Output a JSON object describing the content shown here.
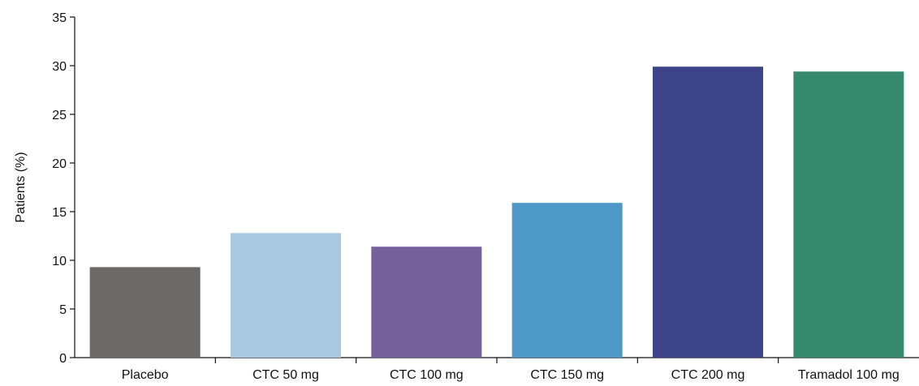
{
  "chart_data": {
    "type": "bar",
    "title": "",
    "xlabel": "",
    "ylabel": "Patients (%)",
    "ylim": [
      0,
      35
    ],
    "yticks": [
      0,
      5,
      10,
      15,
      20,
      25,
      30,
      35
    ],
    "grid": false,
    "legend": "none",
    "categories": [
      "Placebo",
      "CTC 50 mg",
      "CTC 100 mg",
      "CTC 150 mg",
      "CTC 200 mg",
      "Tramadol 100 mg"
    ],
    "values": [
      9.3,
      12.8,
      11.4,
      15.9,
      29.9,
      29.4
    ],
    "colors": [
      "#6b6865",
      "#a9c8e2",
      "#76609c",
      "#4e98c8",
      "#3c4388",
      "#368b6e"
    ]
  }
}
